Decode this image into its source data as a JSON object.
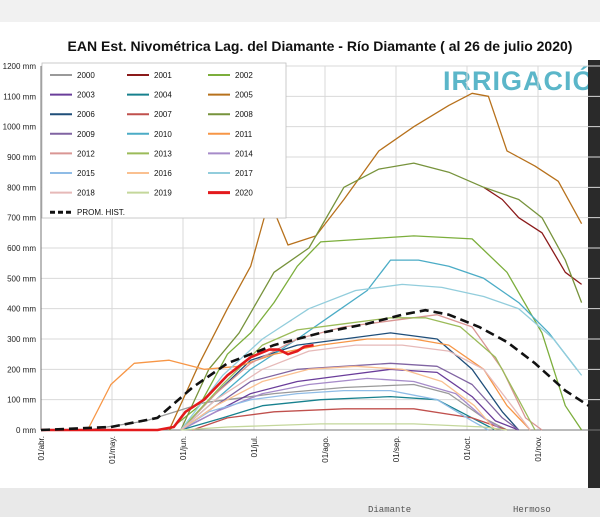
{
  "strips": {
    "bottom_left": "Diamante",
    "bottom_right": "Hermoso"
  },
  "brand": "IRRIGACIÓN",
  "chart_data": {
    "type": "line",
    "title": "EAN Est. Nivométrica Lag. del Diamante - Río Diamante  ( al 26 de julio 2020)",
    "ylabel": "mm",
    "ylim": [
      0,
      1200
    ],
    "y_ticks": [
      "0 mm",
      "100 mm",
      "200 mm",
      "300 mm",
      "400 mm",
      "500 mm",
      "600 mm",
      "700 mm",
      "800 mm",
      "900 mm",
      "1000 mm",
      "1100 mm",
      "1200 mm"
    ],
    "x_ticks": [
      "01/abr.",
      "01/may.",
      "01/jun.",
      "01/jul.",
      "01/ago.",
      "01/sep.",
      "01/oct.",
      "01/nov."
    ],
    "x_unit": "days since 01/abr.",
    "series": [
      {
        "name": "2000",
        "color": "#9a9a9a",
        "points": [
          [
            20,
            0
          ],
          [
            45,
            30
          ],
          [
            70,
            90
          ],
          [
            100,
            120
          ],
          [
            130,
            140
          ],
          [
            160,
            150
          ],
          [
            175,
            120
          ],
          [
            190,
            40
          ],
          [
            200,
            0
          ]
        ]
      },
      {
        "name": "2001",
        "color": "#8b1a1a",
        "points": [
          [
            190,
            800
          ],
          [
            198,
            760
          ],
          [
            205,
            700
          ],
          [
            215,
            650
          ],
          [
            225,
            520
          ],
          [
            232,
            480
          ]
        ]
      },
      {
        "name": "2002",
        "color": "#7cae3c",
        "points": [
          [
            55,
            0
          ],
          [
            68,
            80
          ],
          [
            80,
            250
          ],
          [
            90,
            320
          ],
          [
            100,
            420
          ],
          [
            110,
            540
          ],
          [
            120,
            620
          ],
          [
            140,
            630
          ],
          [
            160,
            640
          ],
          [
            185,
            630
          ],
          [
            200,
            520
          ],
          [
            215,
            320
          ],
          [
            225,
            80
          ],
          [
            232,
            0
          ]
        ]
      },
      {
        "name": "2003",
        "color": "#6a3d9a",
        "points": [
          [
            60,
            0
          ],
          [
            75,
            60
          ],
          [
            90,
            120
          ],
          [
            110,
            160
          ],
          [
            130,
            180
          ],
          [
            150,
            200
          ],
          [
            170,
            190
          ],
          [
            185,
            110
          ],
          [
            195,
            30
          ],
          [
            205,
            0
          ]
        ]
      },
      {
        "name": "2004",
        "color": "#17818e",
        "points": [
          [
            60,
            0
          ],
          [
            78,
            40
          ],
          [
            95,
            80
          ],
          [
            120,
            100
          ],
          [
            150,
            110
          ],
          [
            170,
            100
          ],
          [
            185,
            40
          ],
          [
            195,
            0
          ]
        ]
      },
      {
        "name": "2005",
        "color": "#b7711c",
        "points": [
          [
            55,
            0
          ],
          [
            68,
            220
          ],
          [
            80,
            400
          ],
          [
            90,
            540
          ],
          [
            98,
            760
          ],
          [
            106,
            610
          ],
          [
            118,
            640
          ],
          [
            130,
            760
          ],
          [
            145,
            920
          ],
          [
            160,
            1000
          ],
          [
            175,
            1070
          ],
          [
            185,
            1110
          ],
          [
            192,
            1100
          ],
          [
            200,
            920
          ],
          [
            212,
            870
          ],
          [
            222,
            820
          ],
          [
            232,
            680
          ]
        ]
      },
      {
        "name": "2006",
        "color": "#1f4e79",
        "points": [
          [
            60,
            0
          ],
          [
            75,
            120
          ],
          [
            90,
            230
          ],
          [
            110,
            280
          ],
          [
            130,
            300
          ],
          [
            150,
            320
          ],
          [
            170,
            300
          ],
          [
            185,
            200
          ],
          [
            198,
            60
          ],
          [
            205,
            0
          ]
        ]
      },
      {
        "name": "2007",
        "color": "#c0504d",
        "points": [
          [
            65,
            0
          ],
          [
            80,
            40
          ],
          [
            100,
            60
          ],
          [
            130,
            70
          ],
          [
            160,
            70
          ],
          [
            185,
            40
          ],
          [
            200,
            0
          ]
        ]
      },
      {
        "name": "2008",
        "color": "#77933c",
        "points": [
          [
            60,
            0
          ],
          [
            72,
            200
          ],
          [
            85,
            320
          ],
          [
            100,
            520
          ],
          [
            115,
            600
          ],
          [
            130,
            800
          ],
          [
            145,
            860
          ],
          [
            160,
            880
          ],
          [
            175,
            850
          ],
          [
            190,
            800
          ],
          [
            205,
            760
          ],
          [
            215,
            700
          ],
          [
            225,
            560
          ],
          [
            232,
            420
          ]
        ]
      },
      {
        "name": "2009",
        "color": "#8064a2",
        "points": [
          [
            60,
            0
          ],
          [
            75,
            80
          ],
          [
            90,
            160
          ],
          [
            110,
            200
          ],
          [
            130,
            210
          ],
          [
            150,
            220
          ],
          [
            170,
            210
          ],
          [
            185,
            150
          ],
          [
            198,
            40
          ],
          [
            205,
            0
          ]
        ]
      },
      {
        "name": "2010",
        "color": "#4bacc6",
        "points": [
          [
            60,
            0
          ],
          [
            75,
            100
          ],
          [
            90,
            200
          ],
          [
            110,
            300
          ],
          [
            125,
            380
          ],
          [
            140,
            460
          ],
          [
            150,
            560
          ],
          [
            162,
            560
          ],
          [
            175,
            540
          ],
          [
            190,
            500
          ],
          [
            205,
            420
          ],
          [
            218,
            320
          ],
          [
            230,
            200
          ]
        ]
      },
      {
        "name": "2011",
        "color": "#f79646",
        "points": [
          [
            20,
            0
          ],
          [
            30,
            150
          ],
          [
            40,
            220
          ],
          [
            55,
            230
          ],
          [
            70,
            200
          ],
          [
            85,
            210
          ],
          [
            100,
            250
          ],
          [
            120,
            280
          ],
          [
            140,
            300
          ],
          [
            160,
            300
          ],
          [
            175,
            280
          ],
          [
            190,
            200
          ],
          [
            200,
            80
          ],
          [
            210,
            0
          ]
        ]
      },
      {
        "name": "2012",
        "color": "#d99694",
        "points": [
          [
            60,
            0
          ],
          [
            75,
            120
          ],
          [
            90,
            220
          ],
          [
            110,
            300
          ],
          [
            130,
            340
          ],
          [
            150,
            360
          ],
          [
            170,
            380
          ],
          [
            185,
            340
          ],
          [
            198,
            200
          ],
          [
            208,
            40
          ],
          [
            215,
            0
          ]
        ]
      },
      {
        "name": "2013",
        "color": "#9bbb59",
        "points": [
          [
            60,
            0
          ],
          [
            78,
            150
          ],
          [
            95,
            280
          ],
          [
            110,
            330
          ],
          [
            130,
            350
          ],
          [
            150,
            370
          ],
          [
            165,
            370
          ],
          [
            180,
            340
          ],
          [
            195,
            240
          ],
          [
            205,
            100
          ],
          [
            212,
            0
          ]
        ]
      },
      {
        "name": "2014",
        "color": "#a68bc9",
        "points": [
          [
            60,
            0
          ],
          [
            75,
            60
          ],
          [
            95,
            120
          ],
          [
            115,
            150
          ],
          [
            140,
            170
          ],
          [
            160,
            160
          ],
          [
            178,
            120
          ],
          [
            190,
            40
          ],
          [
            198,
            0
          ]
        ]
      },
      {
        "name": "2015",
        "color": "#8fbce6",
        "points": [
          [
            60,
            0
          ],
          [
            72,
            60
          ],
          [
            90,
            100
          ],
          [
            110,
            120
          ],
          [
            130,
            130
          ],
          [
            150,
            130
          ],
          [
            170,
            100
          ],
          [
            185,
            30
          ],
          [
            192,
            0
          ]
        ]
      },
      {
        "name": "2016",
        "color": "#fac090",
        "points": [
          [
            60,
            0
          ],
          [
            75,
            80
          ],
          [
            95,
            160
          ],
          [
            115,
            200
          ],
          [
            135,
            210
          ],
          [
            155,
            200
          ],
          [
            172,
            160
          ],
          [
            186,
            80
          ],
          [
            195,
            0
          ]
        ]
      },
      {
        "name": "2017",
        "color": "#92cddc",
        "points": [
          [
            60,
            0
          ],
          [
            78,
            180
          ],
          [
            95,
            300
          ],
          [
            115,
            400
          ],
          [
            135,
            460
          ],
          [
            155,
            480
          ],
          [
            172,
            470
          ],
          [
            190,
            440
          ],
          [
            205,
            400
          ],
          [
            220,
            300
          ],
          [
            232,
            180
          ]
        ]
      },
      {
        "name": "2018",
        "color": "#e6b9b8",
        "points": [
          [
            60,
            0
          ],
          [
            75,
            100
          ],
          [
            95,
            200
          ],
          [
            115,
            260
          ],
          [
            135,
            280
          ],
          [
            155,
            280
          ],
          [
            175,
            260
          ],
          [
            190,
            200
          ],
          [
            202,
            80
          ],
          [
            210,
            0
          ]
        ]
      },
      {
        "name": "2019",
        "color": "#c4d79b",
        "points": [
          [
            60,
            0
          ],
          [
            80,
            10
          ],
          [
            120,
            20
          ],
          [
            160,
            20
          ],
          [
            190,
            10
          ],
          [
            200,
            0
          ]
        ]
      },
      {
        "name": "2020",
        "color": "#e31a1c",
        "points": [
          [
            0,
            0
          ],
          [
            50,
            0
          ],
          [
            57,
            10
          ],
          [
            62,
            60
          ],
          [
            70,
            100
          ],
          [
            80,
            180
          ],
          [
            90,
            240
          ],
          [
            98,
            265
          ],
          [
            102,
            265
          ],
          [
            106,
            250
          ],
          [
            110,
            260
          ],
          [
            113,
            275
          ],
          [
            117,
            280
          ]
        ]
      },
      {
        "name": "PROM. HIST.",
        "color": "#111111",
        "dashed": true,
        "points": [
          [
            0,
            0
          ],
          [
            30,
            10
          ],
          [
            50,
            40
          ],
          [
            65,
            140
          ],
          [
            80,
            220
          ],
          [
            100,
            280
          ],
          [
            120,
            320
          ],
          [
            140,
            350
          ],
          [
            155,
            380
          ],
          [
            165,
            395
          ],
          [
            175,
            380
          ],
          [
            188,
            340
          ],
          [
            200,
            290
          ],
          [
            212,
            220
          ],
          [
            225,
            130
          ],
          [
            235,
            80
          ]
        ]
      }
    ]
  }
}
